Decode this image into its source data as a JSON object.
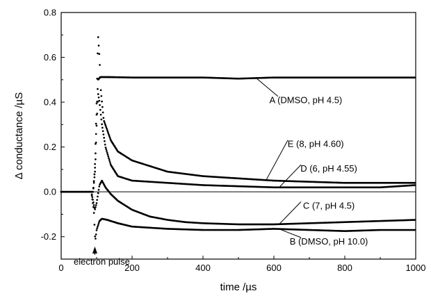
{
  "chart_data": {
    "type": "scatter",
    "xlabel": "time /µs",
    "ylabel": "Δ conductance /µS",
    "xlim": [
      0,
      1000
    ],
    "ylim": [
      -0.3,
      0.8
    ],
    "xticks": [
      "0",
      "200",
      "400",
      "600",
      "800",
      "1000"
    ],
    "yticks": [
      "-0.2",
      "0.0",
      "0.2",
      "0.4",
      "0.6",
      "0.8"
    ],
    "grid": false,
    "zero_line": true,
    "series": [
      {
        "name": "A (DMSO, pH 4.5)",
        "label_anchor": [
          690,
          0.395
        ],
        "points": [
          [
            0,
            0
          ],
          [
            90,
            0
          ],
          [
            96,
            0.12
          ],
          [
            100,
            0.35
          ],
          [
            104,
            0.5
          ],
          [
            110,
            0.512
          ],
          [
            130,
            0.512
          ],
          [
            200,
            0.51
          ],
          [
            300,
            0.51
          ],
          [
            400,
            0.51
          ],
          [
            500,
            0.505
          ],
          [
            600,
            0.51
          ],
          [
            700,
            0.51
          ],
          [
            800,
            0.51
          ],
          [
            900,
            0.51
          ],
          [
            1000,
            0.51
          ]
        ]
      },
      {
        "name": "E (8, pH 4.60)",
        "label_anchor": [
          718,
          0.2
        ],
        "points": [
          [
            0,
            0
          ],
          [
            90,
            0
          ],
          [
            95,
            0.1
          ],
          [
            100,
            0.4
          ],
          [
            104,
            0.7
          ],
          [
            108,
            0.6
          ],
          [
            112,
            0.45
          ],
          [
            120,
            0.32
          ],
          [
            140,
            0.23
          ],
          [
            160,
            0.18
          ],
          [
            200,
            0.14
          ],
          [
            250,
            0.115
          ],
          [
            300,
            0.09
          ],
          [
            350,
            0.08
          ],
          [
            400,
            0.07
          ],
          [
            450,
            0.065
          ],
          [
            500,
            0.06
          ],
          [
            550,
            0.055
          ],
          [
            600,
            0.05
          ],
          [
            700,
            0.045
          ],
          [
            800,
            0.04
          ],
          [
            900,
            0.04
          ],
          [
            1000,
            0.04
          ]
        ]
      },
      {
        "name": "D (6, pH 4.55)",
        "label_anchor": [
          755,
          0.09
        ],
        "points": [
          [
            0,
            0
          ],
          [
            90,
            0
          ],
          [
            96,
            0.1
          ],
          [
            100,
            0.3
          ],
          [
            104,
            0.44
          ],
          [
            108,
            0.4
          ],
          [
            115,
            0.3
          ],
          [
            125,
            0.2
          ],
          [
            140,
            0.12
          ],
          [
            160,
            0.07
          ],
          [
            200,
            0.05
          ],
          [
            300,
            0.04
          ],
          [
            400,
            0.03
          ],
          [
            500,
            0.025
          ],
          [
            600,
            0.02
          ],
          [
            700,
            0.02
          ],
          [
            800,
            0.02
          ],
          [
            900,
            0.02
          ],
          [
            1000,
            0.03
          ]
        ]
      },
      {
        "name": "C (7, pH 4.5)",
        "label_anchor": [
          755,
          -0.075
        ],
        "points": [
          [
            0,
            0
          ],
          [
            85,
            0
          ],
          [
            95,
            -0.08
          ],
          [
            100,
            -0.05
          ],
          [
            108,
            0.03
          ],
          [
            115,
            0.05
          ],
          [
            125,
            0.02
          ],
          [
            140,
            -0.01
          ],
          [
            160,
            -0.04
          ],
          [
            200,
            -0.08
          ],
          [
            250,
            -0.11
          ],
          [
            300,
            -0.125
          ],
          [
            350,
            -0.135
          ],
          [
            400,
            -0.14
          ],
          [
            500,
            -0.145
          ],
          [
            600,
            -0.145
          ],
          [
            700,
            -0.14
          ],
          [
            800,
            -0.135
          ],
          [
            900,
            -0.13
          ],
          [
            1000,
            -0.125
          ]
        ]
      },
      {
        "name": "B (DMSO, pH 10.0)",
        "label_anchor": [
          755,
          -0.235
        ],
        "points": [
          [
            0,
            0
          ],
          [
            85,
            0
          ],
          [
            92,
            -0.08
          ],
          [
            96,
            -0.22
          ],
          [
            100,
            -0.17
          ],
          [
            108,
            -0.13
          ],
          [
            115,
            -0.12
          ],
          [
            130,
            -0.125
          ],
          [
            160,
            -0.14
          ],
          [
            200,
            -0.155
          ],
          [
            250,
            -0.16
          ],
          [
            300,
            -0.165
          ],
          [
            400,
            -0.17
          ],
          [
            500,
            -0.17
          ],
          [
            600,
            -0.165
          ],
          [
            700,
            -0.17
          ],
          [
            800,
            -0.175
          ],
          [
            900,
            -0.17
          ],
          [
            1000,
            -0.17
          ]
        ]
      }
    ],
    "annotations": [
      {
        "text": "electron pulse",
        "arrow_to": [
          95,
          -0.25
        ],
        "label_at": [
          95,
          -0.325
        ]
      }
    ]
  }
}
